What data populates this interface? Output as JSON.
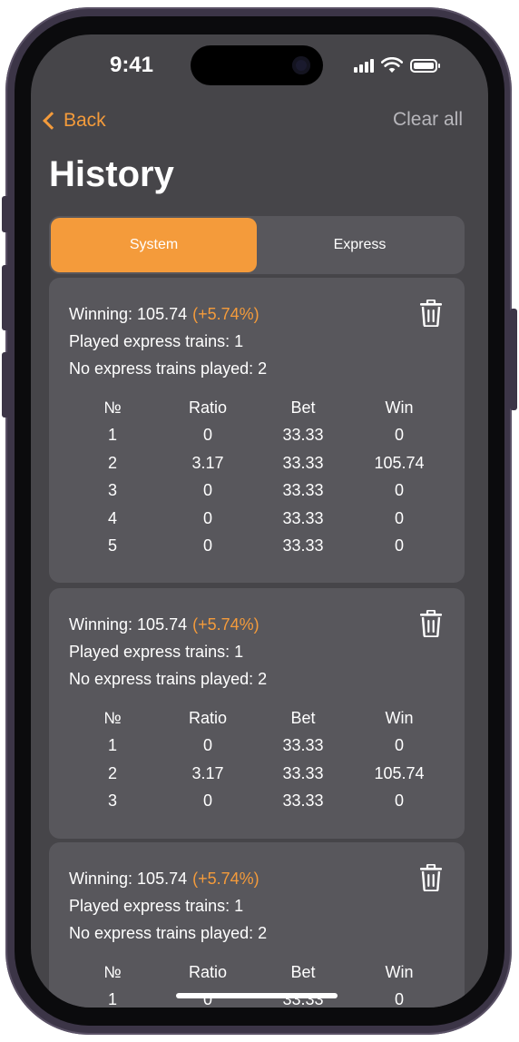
{
  "status": {
    "time": "9:41"
  },
  "nav": {
    "back_label": "Back",
    "clear_label": "Clear all"
  },
  "page_title": "History",
  "tabs": [
    {
      "label": "System",
      "active": true
    },
    {
      "label": "Express",
      "active": false
    }
  ],
  "labels": {
    "winning": "Winning:",
    "played": "Played express trains:",
    "not_played": "No express trains played:"
  },
  "table_headers": [
    "№",
    "Ratio",
    "Bet",
    "Win"
  ],
  "cards": [
    {
      "winning": "105.74",
      "percent": "(+5.74%)",
      "played": "1",
      "not_played": "2",
      "rows": [
        [
          "1",
          "0",
          "33.33",
          "0"
        ],
        [
          "2",
          "3.17",
          "33.33",
          "105.74"
        ],
        [
          "3",
          "0",
          "33.33",
          "0"
        ],
        [
          "4",
          "0",
          "33.33",
          "0"
        ],
        [
          "5",
          "0",
          "33.33",
          "0"
        ]
      ]
    },
    {
      "winning": "105.74",
      "percent": "(+5.74%)",
      "played": "1",
      "not_played": "2",
      "rows": [
        [
          "1",
          "0",
          "33.33",
          "0"
        ],
        [
          "2",
          "3.17",
          "33.33",
          "105.74"
        ],
        [
          "3",
          "0",
          "33.33",
          "0"
        ]
      ]
    },
    {
      "winning": "105.74",
      "percent": "(+5.74%)",
      "played": "1",
      "not_played": "2",
      "rows": [
        [
          "1",
          "0",
          "33.33",
          "0"
        ]
      ]
    }
  ],
  "colors": {
    "accent": "#f49b3b",
    "background": "#464549",
    "card": "#58575c"
  },
  "icons": {
    "trash": "trash-icon",
    "back": "chevron-left-icon"
  }
}
